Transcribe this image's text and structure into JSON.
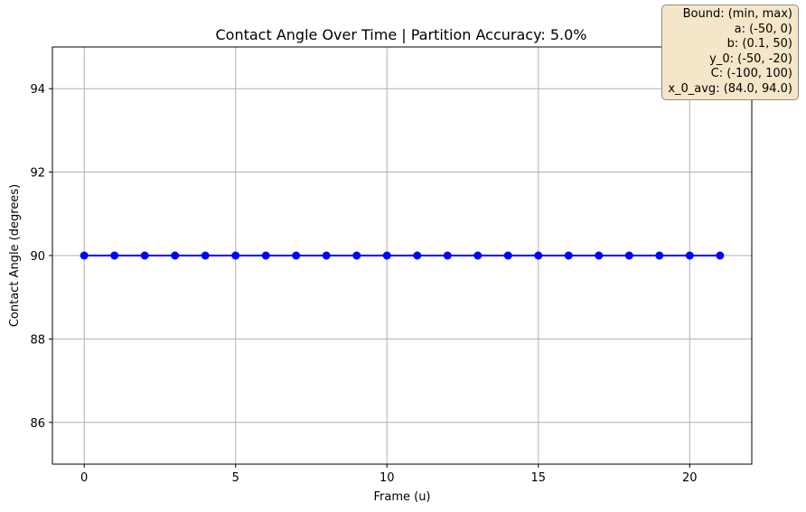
{
  "chart_data": {
    "type": "line",
    "title": "Contact Angle Over Time | Partition Accuracy: 5.0%",
    "xlabel": "Frame (u)",
    "ylabel": "Contact Angle (degrees)",
    "xlim": [
      -1.05,
      22.05
    ],
    "ylim": [
      85,
      95
    ],
    "xticks": [
      0,
      5,
      10,
      15,
      20
    ],
    "yticks": [
      86,
      88,
      90,
      92,
      94
    ],
    "grid": true,
    "series": [
      {
        "color": "#0000ff",
        "marker": "circle",
        "x": [
          0,
          1,
          2,
          3,
          4,
          5,
          6,
          7,
          8,
          9,
          10,
          11,
          12,
          13,
          14,
          15,
          16,
          17,
          18,
          19,
          20,
          21
        ],
        "y": [
          90,
          90,
          90,
          90,
          90,
          90,
          90,
          90,
          90,
          90,
          90,
          90,
          90,
          90,
          90,
          90,
          90,
          90,
          90,
          90,
          90,
          90
        ]
      }
    ],
    "annotation": {
      "placement": "top-right",
      "lines": [
        "Bound: (min, max)",
        "a: (-50, 0)",
        "b: (0.1, 50)",
        "y_0: (-50, -20)",
        "C: (-100, 100)",
        "x_0_avg: (84.0, 94.0)"
      ]
    }
  }
}
